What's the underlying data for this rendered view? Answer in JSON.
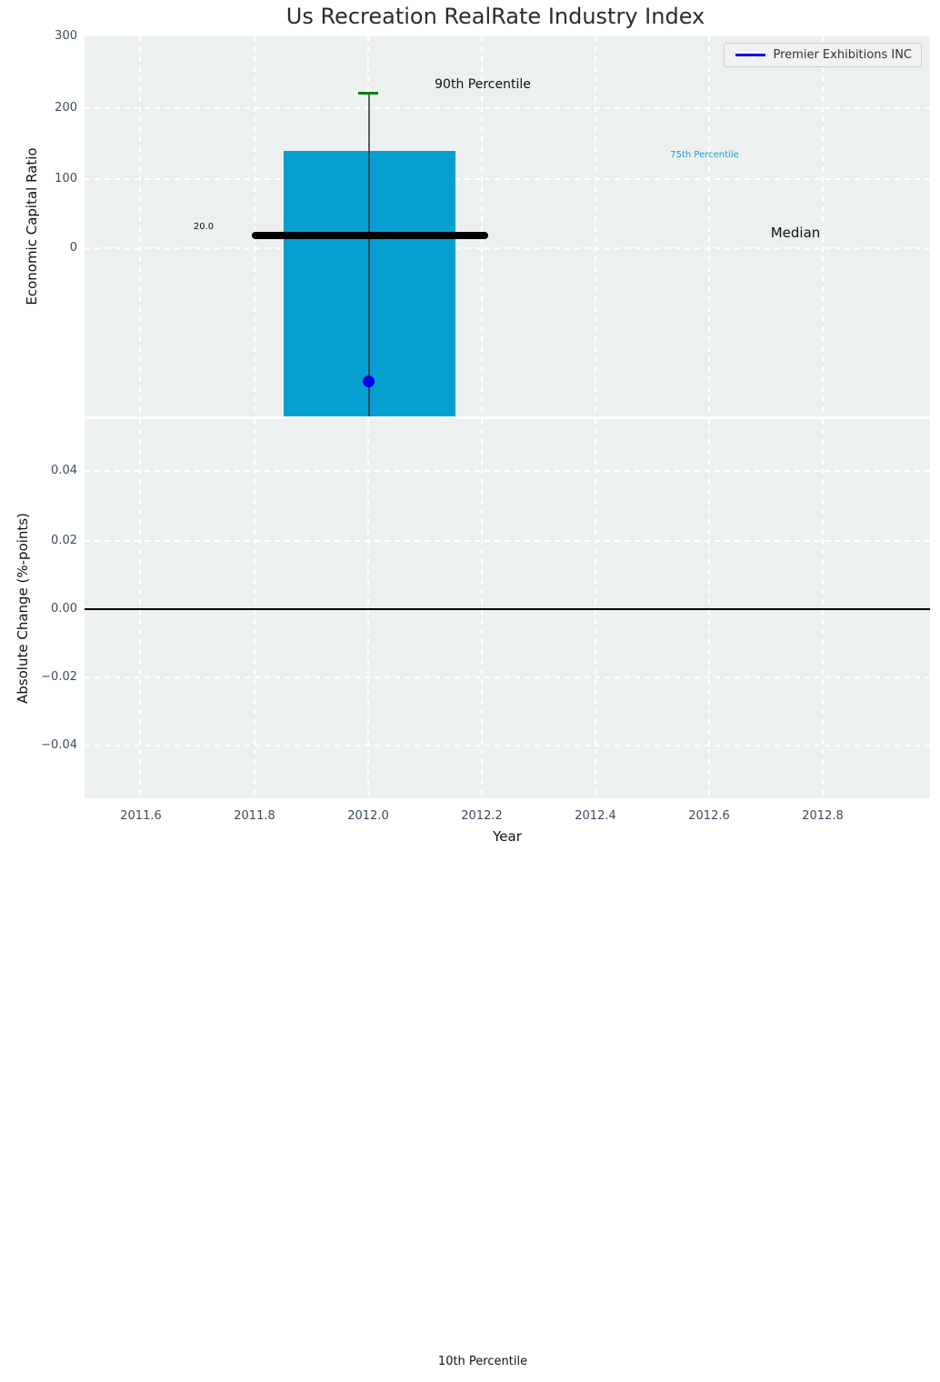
{
  "figure": {
    "title": "Us Recreation RealRate Industry Index",
    "background": "#ffffff",
    "axes_background": "#ecf0f1"
  },
  "legend": {
    "entries": [
      {
        "label": "Premier Exhibitions INC",
        "line_color": "#0000ee"
      }
    ]
  },
  "chart_data": [
    {
      "type": "bar",
      "subplot": "top",
      "title": "Us Recreation RealRate Industry Index",
      "xlabel": "",
      "ylabel": "Economic Capital Ratio",
      "xlim": [
        2011.5,
        2013.0
      ],
      "ylim_visible": [
        -238,
        300
      ],
      "grid": "white dashed on light gray",
      "legend_position": "upper right",
      "xticks": [
        "2011.6",
        "2011.8",
        "2012.0",
        "2012.2",
        "2012.4",
        "2012.6",
        "2012.8"
      ],
      "yticks": [
        "300",
        "200",
        "100",
        "0"
      ],
      "x_center": 2012.0,
      "bar_x_range": [
        2011.85,
        2012.15
      ],
      "industry_percentiles": {
        "p90": 220,
        "p75": 137,
        "median": 20.0,
        "p25": "below visible axis (< -238)",
        "p10": "far below visible axis"
      },
      "company_point": {
        "name": "Premier Exhibitions INC",
        "x": 2012.0,
        "y": -190
      },
      "annotations": {
        "p90": "90th Percentile",
        "p75": "75th Percentile",
        "median": "Median",
        "median_value": "20.0",
        "p10": "10th Percentile"
      },
      "colors": {
        "bar": "#069fd2",
        "p90_cap": "#008000",
        "median_line": "#000000",
        "company_dot": "#0000ee",
        "whisker": "#555555",
        "p75_text": "#1a9ecb",
        "tick_text": "#3b4d5f"
      }
    },
    {
      "type": "line",
      "subplot": "bottom",
      "xlabel": "Year",
      "ylabel": "Absolute Change (%-points)",
      "xlim": [
        2011.5,
        2013.0
      ],
      "ylim": [
        -0.055,
        0.055
      ],
      "xticks": [
        "2011.6",
        "2011.8",
        "2012.0",
        "2012.2",
        "2012.4",
        "2012.6",
        "2012.8"
      ],
      "yticks": [
        "0.04",
        "0.02",
        "0.00",
        "−0.02",
        "−0.04"
      ],
      "zero_line": 0.0,
      "series": []
    }
  ]
}
